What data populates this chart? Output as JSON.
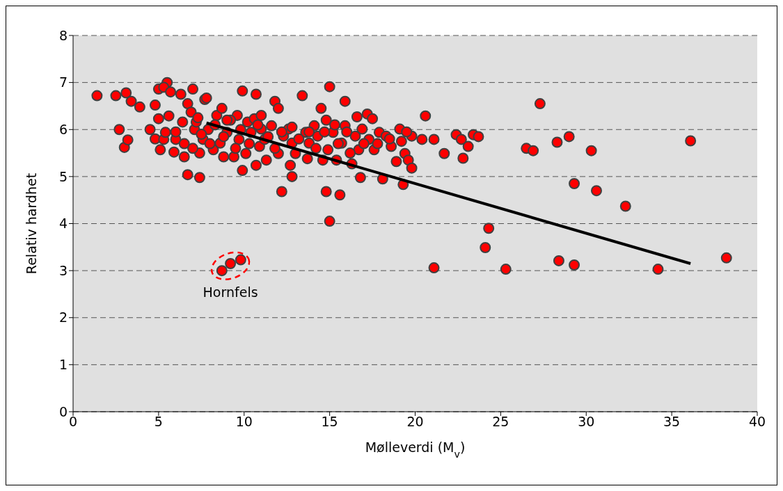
{
  "chart_data": {
    "type": "scatter",
    "xlabel": "Mølleverdi (M$_{v}$)",
    "ylabel": "Relativ hardhet",
    "xlim": [
      0,
      40
    ],
    "xticks": [
      0,
      5,
      10,
      15,
      20,
      25,
      30,
      35,
      40
    ],
    "ylim": [
      0,
      8
    ],
    "yticks": [
      0,
      1,
      2,
      3,
      4,
      5,
      6,
      7,
      8
    ],
    "grid": "y",
    "annotations": [
      {
        "text": "Hornfels",
        "x": 9.2,
        "y": 3.1
      }
    ],
    "series": [
      {
        "marker": "circle",
        "color": "#ff0000",
        "x": [
          1.4,
          2.5,
          3.1,
          2.7,
          3.0,
          3.2,
          3.4,
          3.9,
          4.5,
          4.8,
          4.8,
          5.0,
          5.5,
          5.3,
          5.7,
          5.1,
          5.3,
          5.4,
          5.6,
          5.0,
          5.9,
          6.0,
          6.3,
          6.4,
          6.5,
          6.7,
          6.7,
          7.0,
          6.9,
          7.1,
          7.2,
          7.4,
          7.4,
          7.7,
          7.8,
          7.6,
          7.9,
          8.2,
          8.4,
          8.7,
          8.6,
          8.8,
          9.0,
          9.4,
          9.6,
          9.7,
          9.9,
          9.9,
          10.1,
          10.2,
          10.4,
          10.6,
          10.7,
          10.7,
          10.9,
          11.0,
          11.2,
          11.3,
          11.6,
          11.8,
          12.0,
          12.0,
          12.2,
          12.3,
          12.6,
          12.7,
          12.8,
          12.8,
          13.0,
          13.4,
          13.6,
          13.7,
          13.8,
          14.1,
          14.3,
          14.5,
          14.6,
          14.8,
          14.8,
          14.9,
          15.0,
          15.0,
          15.2,
          15.4,
          15.6,
          15.7,
          15.9,
          15.9,
          16.3,
          16.5,
          16.6,
          16.7,
          16.8,
          16.9,
          17.2,
          17.3,
          17.5,
          17.6,
          17.9,
          18.1,
          18.3,
          18.6,
          18.9,
          19.1,
          19.4,
          19.3,
          19.6,
          19.8,
          19.8,
          20.4,
          20.6,
          21.1,
          21.1,
          21.7,
          22.4,
          22.7,
          22.8,
          23.1,
          23.4,
          23.7,
          24.1,
          24.3,
          25.3,
          26.5,
          26.9,
          27.3,
          28.3,
          28.4,
          29.0,
          29.3,
          29.3,
          30.3,
          30.6,
          32.3,
          34.2,
          36.1,
          38.2,
          8.7,
          9.2,
          9.8,
          6.0,
          6.5,
          7.0,
          7.5,
          8.0,
          8.3,
          8.8,
          9.2,
          9.5,
          9.8,
          10.3,
          10.8,
          11.4,
          11.8,
          12.2,
          12.8,
          13.2,
          13.8,
          14.2,
          14.7,
          15.3,
          15.5,
          16.0,
          16.2,
          17.0,
          17.8,
          18.5,
          19.2,
          19.5,
          11.0,
          9.0,
          7.3
        ],
        "values": [
          6.72,
          6.72,
          6.78,
          6.0,
          5.62,
          5.78,
          6.6,
          6.48,
          6.0,
          6.52,
          5.8,
          6.86,
          7.0,
          6.9,
          6.8,
          5.57,
          5.79,
          5.94,
          6.29,
          6.23,
          5.52,
          5.79,
          6.75,
          6.16,
          5.42,
          5.04,
          6.55,
          6.86,
          6.37,
          6.0,
          6.16,
          4.98,
          5.5,
          6.64,
          6.67,
          5.79,
          6.0,
          5.57,
          6.3,
          6.45,
          5.71,
          5.42,
          5.94,
          5.42,
          6.3,
          5.79,
          6.82,
          5.13,
          5.49,
          6.16,
          5.94,
          6.23,
          6.75,
          5.24,
          5.64,
          6.01,
          5.79,
          5.35,
          6.08,
          6.6,
          6.45,
          5.49,
          4.68,
          5.86,
          6.01,
          5.24,
          5.0,
          5.71,
          5.49,
          6.72,
          5.94,
          5.38,
          5.71,
          6.08,
          5.86,
          6.45,
          5.35,
          6.2,
          4.68,
          5.57,
          6.91,
          4.05,
          5.94,
          5.35,
          4.61,
          5.71,
          6.6,
          6.08,
          5.27,
          5.86,
          6.27,
          5.57,
          4.98,
          6.01,
          6.33,
          5.79,
          6.23,
          5.57,
          5.94,
          4.95,
          5.86,
          5.64,
          5.32,
          6.01,
          5.49,
          4.83,
          5.35,
          5.18,
          5.86,
          5.79,
          6.29,
          5.79,
          3.06,
          5.49,
          5.89,
          5.79,
          5.39,
          5.64,
          5.89,
          5.85,
          3.49,
          3.9,
          3.03,
          5.6,
          5.55,
          6.55,
          5.73,
          3.21,
          5.85,
          4.85,
          3.12,
          5.55,
          4.7,
          4.37,
          3.03,
          5.76,
          3.27,
          3.0,
          3.15,
          3.23,
          5.95,
          5.7,
          5.6,
          5.9,
          5.7,
          6.1,
          5.85,
          6.2,
          5.6,
          6.0,
          5.7,
          6.1,
          5.85,
          5.6,
          5.95,
          6.05,
          5.8,
          5.95,
          5.6,
          5.95,
          6.1,
          5.7,
          5.95,
          5.5,
          5.7,
          5.7,
          5.8,
          5.75,
          5.95,
          6.3,
          6.2,
          6.25
        ]
      },
      {
        "type": "line",
        "color": "#000000",
        "x": [
          7.8,
          36.1
        ],
        "values": [
          6.14,
          3.15
        ]
      }
    ]
  }
}
